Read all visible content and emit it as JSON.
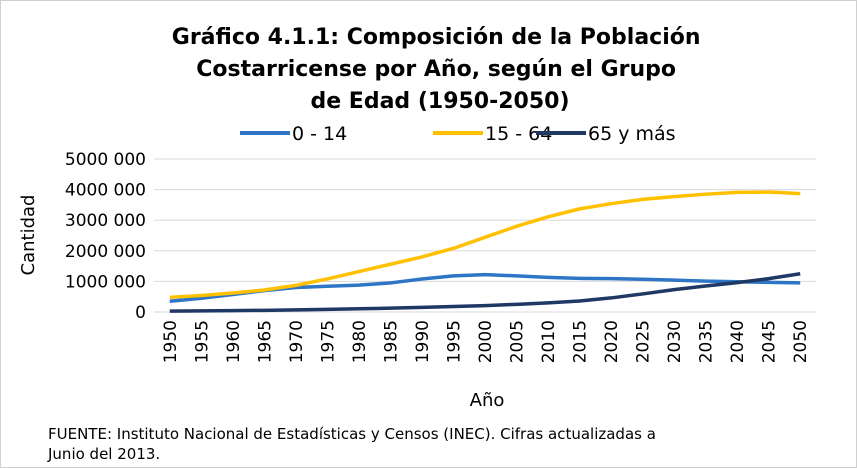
{
  "chart_data": {
    "type": "line",
    "title": [
      "Gráfico 4.1.1: Composición de la Población",
      "Costarricense por Año, según el Grupo",
      "de Edad (1950-2050)"
    ],
    "x_label": "Año",
    "y_label": "Cantidad",
    "source": "FUENTE: Instituto Nacional de Estadísticas y Censos (INEC). Cifras actualizadas a Junio del 2013.",
    "categories": [
      "1950",
      "1955",
      "1960",
      "1965",
      "1970",
      "1975",
      "1980",
      "1985",
      "1990",
      "1995",
      "2000",
      "2005",
      "2010",
      "2015",
      "2020",
      "2025",
      "2030",
      "2035",
      "2040",
      "2045",
      "2050"
    ],
    "series": [
      {
        "name": "0 - 14",
        "color": "#2e75c6",
        "values": [
          350000,
          450000,
          570000,
          700000,
          800000,
          840000,
          880000,
          950000,
          1080000,
          1180000,
          1220000,
          1180000,
          1130000,
          1100000,
          1090000,
          1070000,
          1040000,
          1010000,
          990000,
          970000,
          950000
        ]
      },
      {
        "name": "15 - 64",
        "color": "#ffc000",
        "values": [
          480000,
          540000,
          620000,
          720000,
          870000,
          1080000,
          1320000,
          1560000,
          1800000,
          2080000,
          2440000,
          2800000,
          3110000,
          3370000,
          3540000,
          3680000,
          3770000,
          3850000,
          3910000,
          3920000,
          3870000
        ]
      },
      {
        "name": "65 y más",
        "color": "#1f3864",
        "values": [
          30000,
          35000,
          45000,
          55000,
          70000,
          85000,
          105000,
          125000,
          150000,
          180000,
          210000,
          250000,
          300000,
          360000,
          460000,
          590000,
          730000,
          850000,
          960000,
          1090000,
          1250000
        ]
      }
    ],
    "ylim": [
      0,
      5000000
    ],
    "yticks": [
      0,
      {
        "value": 1000000,
        "label": "1000 000"
      },
      {
        "value": 2000000,
        "label": "2000 000"
      },
      {
        "value": 3000000,
        "label": "3000 000"
      },
      {
        "value": 4000000,
        "label": "4000 000"
      },
      {
        "value": 5000000,
        "label": "5000 000"
      }
    ],
    "grid": true,
    "legend": "top"
  }
}
